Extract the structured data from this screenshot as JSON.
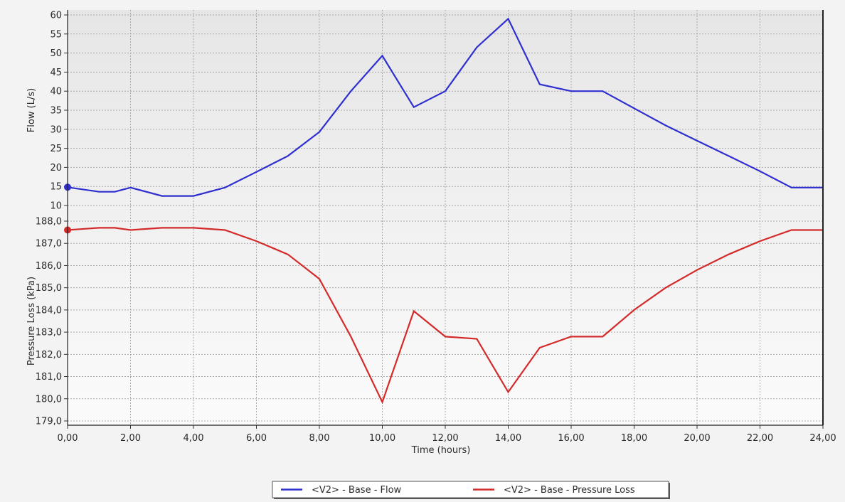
{
  "chart_data": {
    "type": "line",
    "xlabel": "Time (hours)",
    "xlim": [
      0,
      24
    ],
    "x_ticks": [
      "0,00",
      "2,00",
      "4,00",
      "6,00",
      "8,00",
      "10,00",
      "12,00",
      "14,00",
      "16,00",
      "18,00",
      "20,00",
      "22,00",
      "24,00"
    ],
    "grid": true,
    "legend_position": "bottom-center",
    "panels": [
      {
        "ylabel": "Flow (L/s)",
        "ylim": [
          10,
          60
        ],
        "y_ticks": [
          "10",
          "15",
          "20",
          "25",
          "30",
          "35",
          "40",
          "45",
          "50",
          "55",
          "60"
        ],
        "series": [
          {
            "name": "<V2> - Base - Flow",
            "color": "#2f2fd0",
            "x": [
              0,
              1,
              1.5,
              2,
              3,
              4,
              5,
              6,
              7,
              8,
              9,
              10,
              11,
              12,
              13,
              14,
              15,
              16,
              17,
              18,
              19,
              20,
              21,
              22,
              23,
              24
            ],
            "y": [
              14.8,
              13.6,
              13.6,
              14.7,
              12.5,
              12.5,
              14.7,
              18.8,
              23.0,
              29.3,
              40.0,
              49.3,
              35.8,
              40.0,
              51.5,
              59.0,
              41.8,
              40.0,
              40.0,
              35.5,
              31.0,
              27.0,
              23.0,
              19.0,
              14.7,
              14.7
            ]
          }
        ]
      },
      {
        "ylabel": "Pressure Loss (kPa)",
        "ylim": [
          179,
          188
        ],
        "y_ticks": [
          "179,0",
          "180,0",
          "181,0",
          "182,0",
          "183,0",
          "184,0",
          "185,0",
          "186,0",
          "187,0",
          "188,0"
        ],
        "series": [
          {
            "name": "<V2> - Base - Pressure Loss",
            "color": "#d42a2a",
            "x": [
              0,
              1,
              1.5,
              2,
              3,
              4,
              5,
              6,
              7,
              8,
              9,
              10,
              11,
              12,
              13,
              14,
              15,
              16,
              17,
              18,
              19,
              20,
              21,
              22,
              23,
              24
            ],
            "y": [
              187.6,
              187.7,
              187.7,
              187.6,
              187.7,
              187.7,
              187.6,
              187.1,
              186.5,
              185.4,
              182.8,
              179.85,
              183.95,
              182.8,
              182.7,
              180.3,
              182.3,
              182.8,
              182.8,
              184.0,
              185.0,
              185.8,
              186.5,
              187.1,
              187.6,
              187.6
            ]
          }
        ]
      }
    ]
  }
}
